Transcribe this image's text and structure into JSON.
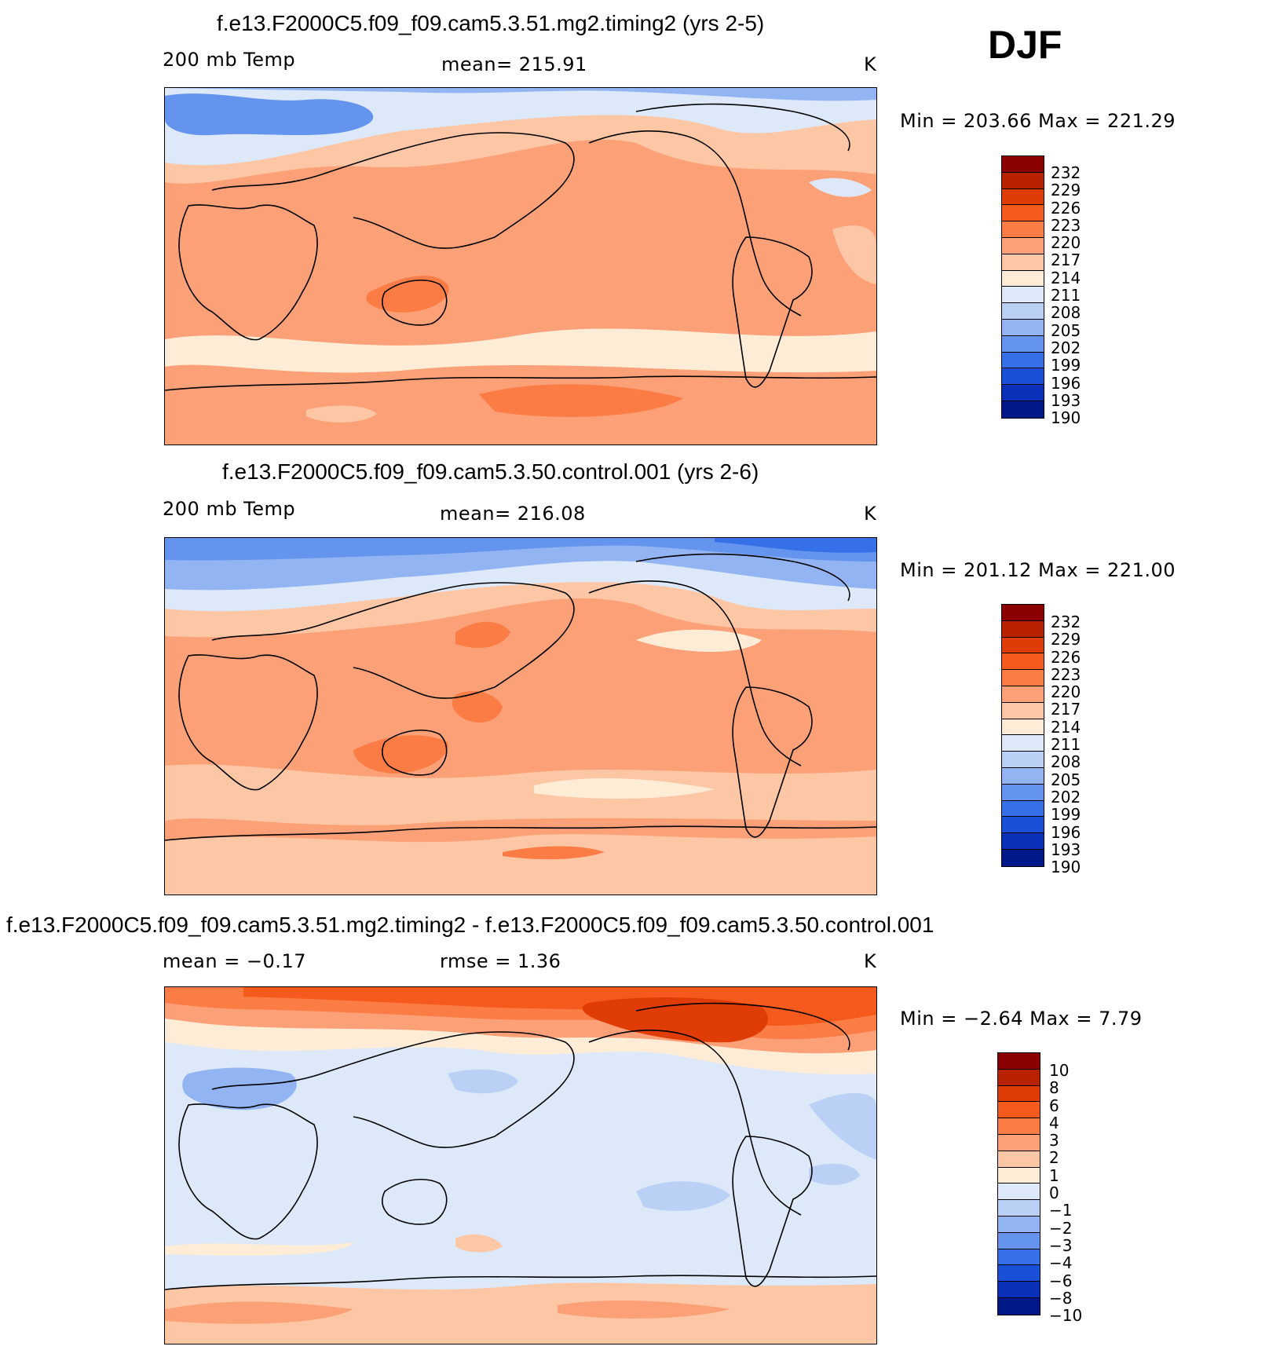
{
  "season": "DJF",
  "panels": [
    {
      "title": "f.e13.F2000C5.f09_f09.cam5.3.51.mg2.timing2 (yrs 2-5)",
      "left_label": "200 mb Temp",
      "center_label": "mean= 215.91",
      "units": "K",
      "minmax": "Min = 203.66 Max = 221.29",
      "colorbar": {
        "labels": [
          "232",
          "229",
          "226",
          "223",
          "220",
          "217",
          "214",
          "211",
          "208",
          "205",
          "202",
          "199",
          "196",
          "193",
          "190"
        ],
        "colors": [
          "#8b0000",
          "#b82200",
          "#e03c05",
          "#f55a1c",
          "#fb7d45",
          "#fca078",
          "#fdc6a5",
          "#feecd7",
          "#dde9f8",
          "#bad0f5",
          "#92b4f2",
          "#6494ee",
          "#3670e8",
          "#1a4fd8",
          "#0a2fb8",
          "#001888"
        ]
      }
    },
    {
      "title": "f.e13.F2000C5.f09_f09.cam5.3.50.control.001 (yrs 2-6)",
      "left_label": "200 mb Temp",
      "center_label": "mean= 216.08",
      "units": "K",
      "minmax": "Min = 201.12 Max = 221.00",
      "colorbar": {
        "labels": [
          "232",
          "229",
          "226",
          "223",
          "220",
          "217",
          "214",
          "211",
          "208",
          "205",
          "202",
          "199",
          "196",
          "193",
          "190"
        ],
        "colors": [
          "#8b0000",
          "#b82200",
          "#e03c05",
          "#f55a1c",
          "#fb7d45",
          "#fca078",
          "#fdc6a5",
          "#feecd7",
          "#dde9f8",
          "#bad0f5",
          "#92b4f2",
          "#6494ee",
          "#3670e8",
          "#1a4fd8",
          "#0a2fb8",
          "#001888"
        ]
      }
    },
    {
      "title": "f.e13.F2000C5.f09_f09.cam5.3.51.mg2.timing2 - f.e13.F2000C5.f09_f09.cam5.3.50.control.001",
      "left_label": "mean = −0.17",
      "center_label": "rmse = 1.36",
      "units": "K",
      "minmax": "Min = −2.64 Max = 7.79",
      "colorbar": {
        "labels": [
          "10",
          "8",
          "6",
          "4",
          "3",
          "2",
          "1",
          "0",
          "−1",
          "−2",
          "−3",
          "−4",
          "−6",
          "−8",
          "−10"
        ],
        "colors": [
          "#8b0000",
          "#b82200",
          "#e03c05",
          "#f55a1c",
          "#fb7d45",
          "#fca078",
          "#fdc6a5",
          "#feecd7",
          "#dde9f8",
          "#bad0f5",
          "#92b4f2",
          "#6494ee",
          "#3670e8",
          "#1a4fd8",
          "#0a2fb8",
          "#001888"
        ]
      }
    }
  ]
}
